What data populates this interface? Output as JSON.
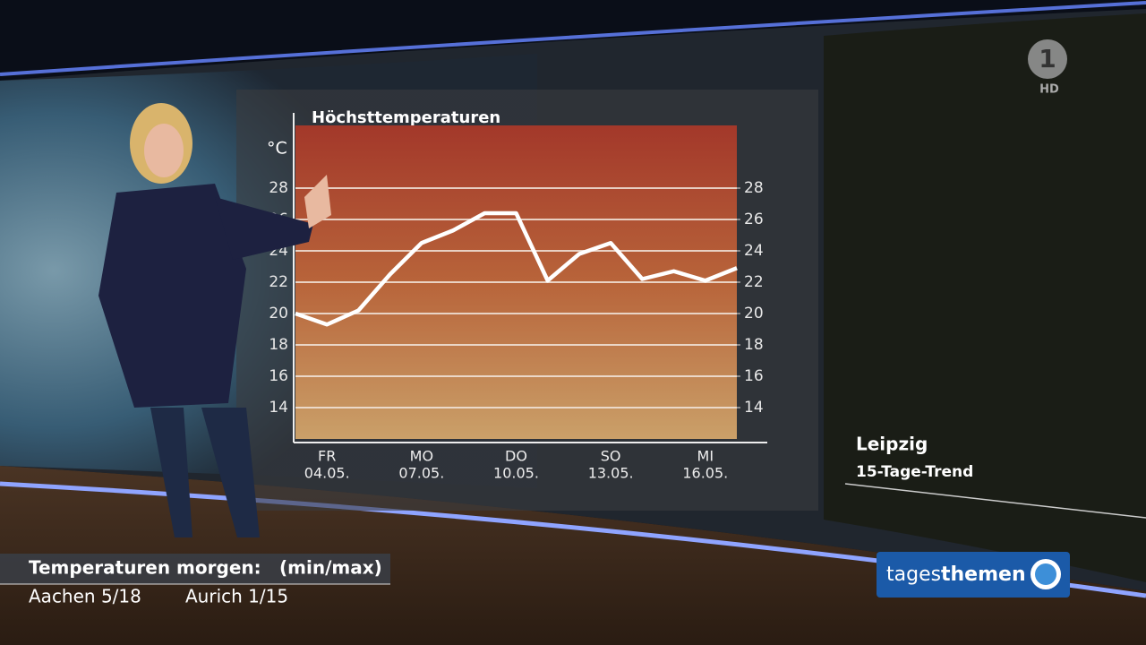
{
  "chart_data": {
    "type": "line",
    "title": "Höchsttemperaturen",
    "y_label": "°C",
    "categories": [
      null,
      "FR",
      null,
      null,
      "MO",
      null,
      null,
      "DO",
      null,
      null,
      "SO",
      null,
      null,
      "MI",
      null
    ],
    "dates": [
      null,
      "04.05.",
      null,
      null,
      "07.05.",
      null,
      null,
      "10.05.",
      null,
      null,
      "13.05.",
      null,
      null,
      "16.05.",
      null
    ],
    "series": [
      {
        "name": "Höchsttemperaturen",
        "color": "#ffffff",
        "values": [
          20.0,
          19.3,
          20.2,
          22.5,
          24.5,
          25.3,
          26.4,
          26.4,
          22.1,
          23.8,
          24.5,
          22.2,
          22.7,
          22.1,
          22.9
        ]
      }
    ],
    "ylim": [
      12,
      32
    ],
    "yticks": [
      14,
      16,
      18,
      20,
      22,
      24,
      26,
      28
    ],
    "y2lim": [
      12,
      32
    ],
    "y2ticks": [
      14,
      16,
      18,
      20,
      22,
      24,
      26,
      28
    ],
    "grid": true
  },
  "logo": "1",
  "hd": "HD",
  "panel": {
    "location": "Leipzig",
    "subtitle": "15-Tage-Trend"
  },
  "ticker": {
    "title": "Temperaturen morgen:",
    "note": "(min/max)",
    "entries": [
      "Aachen 5/18",
      "Aurich 1/15"
    ]
  },
  "show": {
    "part1": "tages",
    "part2": "themen"
  }
}
